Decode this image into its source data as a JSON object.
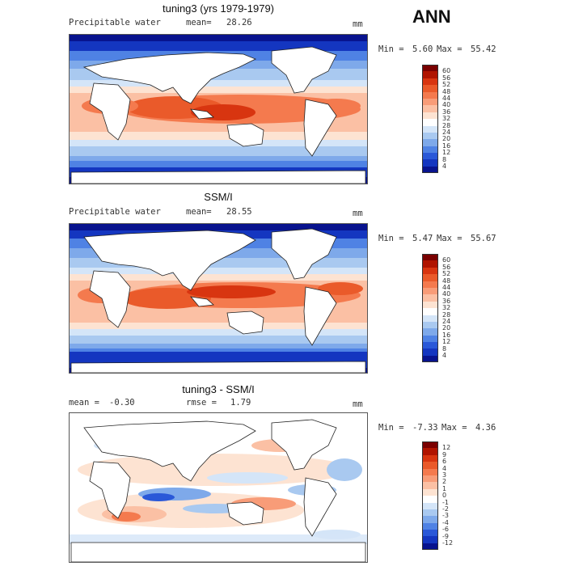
{
  "season": "ANN",
  "panels": [
    {
      "title": "tuning3 (yrs 1979-1979)",
      "variable": "Precipitable water",
      "stat_label": "mean=",
      "stat_value": "28.26",
      "units": "mm",
      "min_label": "Min =",
      "min_value": "5.60",
      "max_label": "Max =",
      "max_value": "55.42"
    },
    {
      "title": "SSM/I",
      "variable": "Precipitable water",
      "stat_label": "mean=",
      "stat_value": "28.55",
      "units": "mm",
      "min_label": "Min =",
      "min_value": "5.47",
      "max_label": "Max =",
      "max_value": "55.67"
    },
    {
      "title": "tuning3 - SSM/I",
      "mean_label": "mean =",
      "mean_value": "-0.30",
      "rmse_label": "rmse =",
      "rmse_value": "1.79",
      "units": "mm",
      "min_label": "Min =",
      "min_value": "-7.33",
      "max_label": "Max =",
      "max_value": "4.36"
    }
  ],
  "colorbars": {
    "abs": {
      "labels": [
        "60",
        "56",
        "52",
        "48",
        "44",
        "40",
        "36",
        "32",
        "28",
        "24",
        "20",
        "16",
        "12",
        "8",
        "4"
      ],
      "colors": [
        "#7a0000",
        "#b01400",
        "#d83510",
        "#ea5a2a",
        "#f47a4e",
        "#f89c78",
        "#fbc0a4",
        "#fde3d2",
        "#ffffff",
        "#d4e5f8",
        "#a9c9f0",
        "#7ea9ea",
        "#4f82e4",
        "#2a58d8",
        "#1436c0",
        "#08138e"
      ]
    },
    "diff": {
      "labels": [
        "12",
        "9",
        "6",
        "4",
        "3",
        "2",
        "1",
        "0",
        "-1",
        "-2",
        "-3",
        "-4",
        "-6",
        "-9",
        "-12"
      ],
      "colors": [
        "#7a0000",
        "#b01400",
        "#d83510",
        "#ea5a2a",
        "#f47a4e",
        "#f89c78",
        "#fbc0a4",
        "#fde3d2",
        "#ffffff",
        "#d4e5f8",
        "#a9c9f0",
        "#7ea9ea",
        "#4f82e4",
        "#2a58d8",
        "#1436c0",
        "#08138e"
      ]
    }
  },
  "chart_data": [
    {
      "type": "heatmap",
      "title": "tuning3 (yrs 1979-1979)",
      "variable": "Precipitable water",
      "units": "mm",
      "mean": 28.26,
      "min": 5.6,
      "max": 55.42,
      "contour_levels": [
        4,
        8,
        12,
        16,
        20,
        24,
        28,
        32,
        36,
        40,
        44,
        48,
        52,
        56,
        60
      ]
    },
    {
      "type": "heatmap",
      "title": "SSM/I",
      "variable": "Precipitable water",
      "units": "mm",
      "mean": 28.55,
      "min": 5.47,
      "max": 55.67,
      "contour_levels": [
        4,
        8,
        12,
        16,
        20,
        24,
        28,
        32,
        36,
        40,
        44,
        48,
        52,
        56,
        60
      ]
    },
    {
      "type": "heatmap",
      "title": "tuning3 - SSM/I",
      "units": "mm",
      "mean": -0.3,
      "rmse": 1.79,
      "min": -7.33,
      "max": 4.36,
      "contour_levels": [
        -12,
        -9,
        -6,
        -4,
        -3,
        -2,
        -1,
        0,
        1,
        2,
        3,
        4,
        6,
        9,
        12
      ]
    }
  ]
}
